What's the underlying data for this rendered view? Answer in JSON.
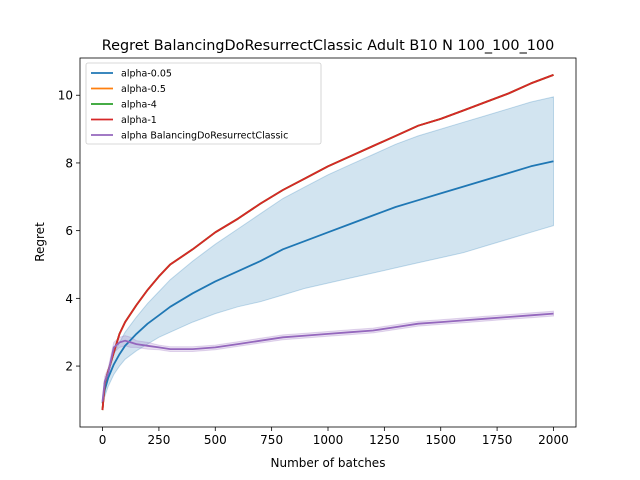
{
  "chart_data": {
    "type": "line",
    "title": "Regret BalancingDoResurrectClassic Adult B10 N 100_100_100",
    "xlabel": "Number of batches",
    "ylabel": "Regret",
    "xlim": [
      -100,
      2100
    ],
    "ylim": [
      0.2,
      11.1
    ],
    "xticks": [
      0,
      250,
      500,
      750,
      1000,
      1250,
      1500,
      1750,
      2000
    ],
    "yticks": [
      2,
      4,
      6,
      8,
      10
    ],
    "legend_position": "top-left",
    "grid": false,
    "series": [
      {
        "name": "alpha-0.05",
        "color": "#1f77b4",
        "x": [
          0,
          10,
          25,
          50,
          75,
          100,
          150,
          200,
          250,
          300,
          400,
          500,
          600,
          700,
          800,
          900,
          1000,
          1100,
          1200,
          1300,
          1400,
          1500,
          1600,
          1700,
          1800,
          1900,
          2000
        ],
        "y": [
          0.9,
          1.3,
          1.65,
          2.05,
          2.35,
          2.6,
          2.95,
          3.25,
          3.5,
          3.75,
          4.15,
          4.5,
          4.8,
          5.1,
          5.45,
          5.7,
          5.95,
          6.2,
          6.45,
          6.7,
          6.9,
          7.1,
          7.3,
          7.5,
          7.7,
          7.9,
          8.05
        ],
        "band_upper": [
          1.0,
          1.5,
          1.9,
          2.35,
          2.7,
          3.0,
          3.45,
          3.85,
          4.2,
          4.55,
          5.1,
          5.6,
          6.05,
          6.5,
          6.95,
          7.3,
          7.65,
          7.95,
          8.25,
          8.55,
          8.8,
          9.0,
          9.2,
          9.4,
          9.6,
          9.8,
          9.95
        ],
        "band_lower": [
          0.8,
          1.1,
          1.4,
          1.75,
          2.0,
          2.2,
          2.45,
          2.65,
          2.85,
          3.0,
          3.3,
          3.55,
          3.75,
          3.9,
          4.1,
          4.3,
          4.45,
          4.6,
          4.75,
          4.9,
          5.05,
          5.2,
          5.35,
          5.55,
          5.75,
          5.95,
          6.15
        ]
      },
      {
        "name": "alpha-0.5",
        "color": "#ff7f0e",
        "x": [
          0,
          10,
          25,
          50,
          75,
          100,
          150,
          200,
          250,
          300,
          400,
          500,
          600,
          700,
          800,
          900,
          1000,
          1100,
          1200,
          1300,
          1400,
          1500,
          1600,
          1700,
          1800,
          1900,
          2000
        ],
        "y": [
          0.7,
          1.5,
          1.85,
          2.4,
          2.95,
          3.3,
          3.8,
          4.25,
          4.65,
          5.0,
          5.45,
          5.95,
          6.35,
          6.8,
          7.2,
          7.55,
          7.9,
          8.2,
          8.5,
          8.8,
          9.1,
          9.3,
          9.55,
          9.8,
          10.05,
          10.35,
          10.6
        ]
      },
      {
        "name": "alpha-4",
        "color": "#2ca02c",
        "x": [
          0,
          10,
          25,
          50,
          75,
          100,
          150,
          200,
          250,
          300,
          400,
          500,
          600,
          700,
          800,
          900,
          1000,
          1100,
          1200,
          1300,
          1400,
          1500,
          1600,
          1700,
          1800,
          1900,
          2000
        ],
        "y": [
          0.7,
          1.5,
          1.85,
          2.4,
          2.95,
          3.3,
          3.8,
          4.25,
          4.65,
          5.0,
          5.45,
          5.95,
          6.35,
          6.8,
          7.2,
          7.55,
          7.9,
          8.2,
          8.5,
          8.8,
          9.1,
          9.3,
          9.55,
          9.8,
          10.05,
          10.35,
          10.6
        ]
      },
      {
        "name": "alpha-1",
        "color": "#d62728",
        "x": [
          0,
          10,
          25,
          50,
          75,
          100,
          150,
          200,
          250,
          300,
          400,
          500,
          600,
          700,
          800,
          900,
          1000,
          1100,
          1200,
          1300,
          1400,
          1500,
          1600,
          1700,
          1800,
          1900,
          2000
        ],
        "y": [
          0.7,
          1.5,
          1.85,
          2.4,
          2.95,
          3.3,
          3.8,
          4.25,
          4.65,
          5.0,
          5.45,
          5.95,
          6.35,
          6.8,
          7.2,
          7.55,
          7.9,
          8.2,
          8.5,
          8.8,
          9.1,
          9.3,
          9.55,
          9.8,
          10.05,
          10.35,
          10.6
        ]
      },
      {
        "name": "alpha BalancingDoResurrectClassic",
        "color": "#9467bd",
        "x": [
          0,
          10,
          25,
          50,
          75,
          100,
          125,
          150,
          200,
          250,
          300,
          400,
          500,
          600,
          700,
          800,
          900,
          1000,
          1100,
          1200,
          1300,
          1400,
          1500,
          1600,
          1700,
          1800,
          1900,
          2000
        ],
        "y": [
          0.95,
          1.55,
          1.8,
          2.55,
          2.7,
          2.75,
          2.7,
          2.65,
          2.6,
          2.55,
          2.5,
          2.5,
          2.55,
          2.65,
          2.75,
          2.85,
          2.9,
          2.95,
          3.0,
          3.05,
          3.15,
          3.25,
          3.3,
          3.35,
          3.4,
          3.45,
          3.5,
          3.55
        ],
        "band_upper": [
          1.05,
          1.7,
          1.95,
          2.7,
          2.85,
          2.9,
          2.85,
          2.75,
          2.7,
          2.62,
          2.57,
          2.57,
          2.62,
          2.72,
          2.82,
          2.92,
          2.97,
          3.02,
          3.07,
          3.12,
          3.22,
          3.32,
          3.37,
          3.42,
          3.47,
          3.52,
          3.57,
          3.62
        ],
        "band_lower": [
          0.85,
          1.4,
          1.65,
          2.4,
          2.55,
          2.6,
          2.55,
          2.55,
          2.5,
          2.48,
          2.43,
          2.43,
          2.48,
          2.58,
          2.68,
          2.78,
          2.83,
          2.88,
          2.93,
          2.98,
          3.08,
          3.18,
          3.23,
          3.28,
          3.33,
          3.38,
          3.43,
          3.48
        ]
      }
    ]
  }
}
